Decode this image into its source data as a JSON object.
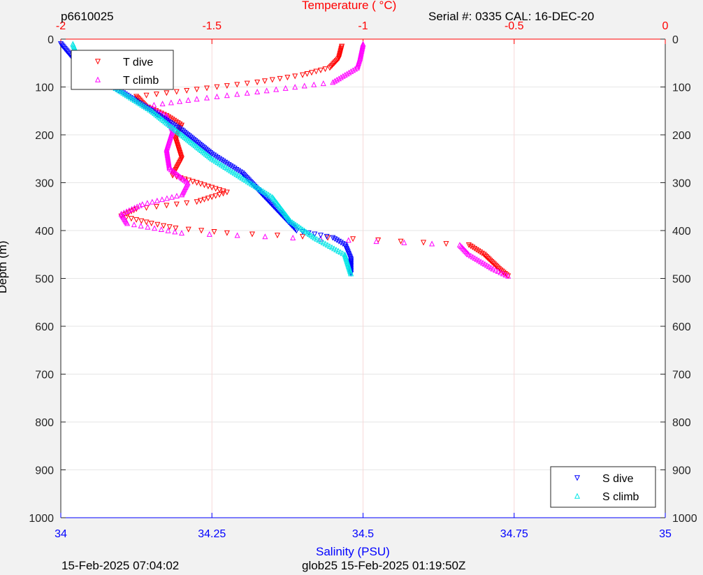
{
  "header": {
    "id_label": "p6610025",
    "serial_label": "Serial #: 0335  CAL: 16-DEC-20"
  },
  "footer": {
    "left": "15-Feb-2025 07:04:02",
    "center": "glob25 15-Feb-2025 01:19:50Z"
  },
  "colors": {
    "t_dive": "#ff0000",
    "t_climb": "#ff00ff",
    "s_dive": "#0000ff",
    "s_climb": "#00e5e5",
    "temp_axis": "#ff0000",
    "sal_axis": "#0000ff",
    "grid": "#e6e6e6"
  },
  "chart_data": {
    "type": "scatter",
    "top_axis": {
      "label": "Temperature (    °C)",
      "range": [
        -2,
        0
      ],
      "ticks": [
        -2,
        -1.5,
        -1,
        -0.5,
        0
      ],
      "tick_labels": [
        "-2",
        "-1.5",
        "-1",
        "-0.5",
        "0"
      ]
    },
    "bottom_axis": {
      "label": "Salinity (PSU)",
      "range": [
        34,
        35
      ],
      "ticks": [
        34,
        34.25,
        34.5,
        34.75,
        35
      ],
      "tick_labels": [
        "34",
        "34.25",
        "34.5",
        "34.75",
        "35"
      ]
    },
    "y_axis": {
      "label": "Depth (m)",
      "range": [
        0,
        1000
      ],
      "reversed": true,
      "ticks": [
        0,
        100,
        200,
        300,
        400,
        500,
        600,
        700,
        800,
        900,
        1000
      ],
      "tick_labels": [
        "0",
        "100",
        "200",
        "300",
        "400",
        "500",
        "600",
        "700",
        "800",
        "900",
        "1000"
      ]
    },
    "grid": true,
    "legend_top": {
      "placement": "top-left",
      "entries": [
        "T dive",
        "T climb"
      ]
    },
    "legend_bottom": {
      "placement": "bottom-right",
      "entries": [
        "S dive",
        "S climb"
      ]
    },
    "series": [
      {
        "name": "T dive",
        "axis": "temperature",
        "marker": "triangle-down",
        "points": [
          [
            -1.07,
            15
          ],
          [
            -1.08,
            40
          ],
          [
            -1.11,
            60
          ],
          [
            -1.2,
            75
          ],
          [
            -1.35,
            90
          ],
          [
            -1.55,
            105
          ],
          [
            -1.75,
            120
          ],
          [
            -1.72,
            140
          ],
          [
            -1.65,
            160
          ],
          [
            -1.6,
            180
          ],
          [
            -1.62,
            210
          ],
          [
            -1.6,
            250
          ],
          [
            -1.63,
            285
          ],
          [
            -1.55,
            300
          ],
          [
            -1.45,
            320
          ],
          [
            -1.55,
            340
          ],
          [
            -1.75,
            355
          ],
          [
            -1.8,
            370
          ],
          [
            -1.7,
            385
          ],
          [
            -1.62,
            395
          ],
          [
            -1.45,
            405
          ],
          [
            -0.95,
            420
          ],
          [
            -0.65,
            430
          ],
          [
            -0.6,
            450
          ],
          [
            -0.55,
            480
          ],
          [
            -0.52,
            495
          ]
        ]
      },
      {
        "name": "T climb",
        "axis": "temperature",
        "marker": "triangle-up",
        "points": [
          [
            -1.0,
            10
          ],
          [
            -1.01,
            40
          ],
          [
            -1.02,
            60
          ],
          [
            -1.1,
            90
          ],
          [
            -1.35,
            110
          ],
          [
            -1.55,
            125
          ],
          [
            -1.72,
            140
          ],
          [
            -1.65,
            160
          ],
          [
            -1.63,
            190
          ],
          [
            -1.65,
            230
          ],
          [
            -1.64,
            270
          ],
          [
            -1.58,
            300
          ],
          [
            -1.6,
            325
          ],
          [
            -1.73,
            345
          ],
          [
            -1.8,
            365
          ],
          [
            -1.78,
            385
          ],
          [
            -1.6,
            405
          ],
          [
            -0.68,
            430
          ],
          [
            -0.65,
            450
          ],
          [
            -0.57,
            480
          ],
          [
            -0.52,
            495
          ]
        ]
      },
      {
        "name": "S dive",
        "axis": "salinity",
        "marker": "triangle-down",
        "points": [
          [
            34.0,
            10
          ],
          [
            34.02,
            40
          ],
          [
            34.05,
            80
          ],
          [
            34.1,
            110
          ],
          [
            34.15,
            150
          ],
          [
            34.2,
            190
          ],
          [
            34.25,
            240
          ],
          [
            34.3,
            280
          ],
          [
            34.33,
            320
          ],
          [
            34.36,
            360
          ],
          [
            34.39,
            400
          ],
          [
            34.45,
            415
          ],
          [
            34.47,
            430
          ],
          [
            34.48,
            460
          ],
          [
            34.48,
            490
          ]
        ]
      },
      {
        "name": "S climb",
        "axis": "salinity",
        "marker": "triangle-up",
        "points": [
          [
            34.02,
            10
          ],
          [
            34.03,
            40
          ],
          [
            34.05,
            70
          ],
          [
            34.1,
            110
          ],
          [
            34.15,
            150
          ],
          [
            34.2,
            200
          ],
          [
            34.25,
            250
          ],
          [
            34.3,
            290
          ],
          [
            34.35,
            330
          ],
          [
            34.38,
            380
          ],
          [
            34.42,
            415
          ],
          [
            34.47,
            450
          ],
          [
            34.48,
            490
          ]
        ]
      }
    ]
  }
}
